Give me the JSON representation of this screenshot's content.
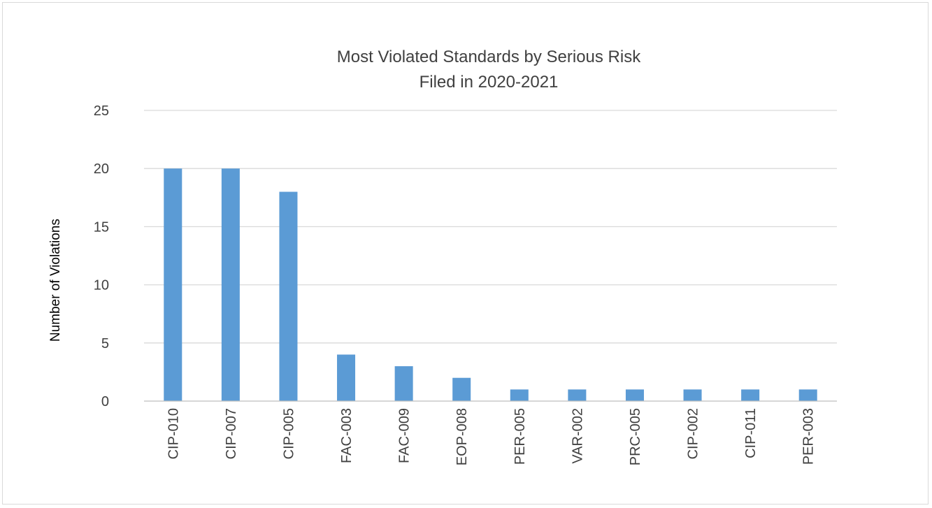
{
  "chart_data": {
    "type": "bar",
    "title": [
      "Most Violated Standards by Serious Risk",
      "Filed in 2020-2021"
    ],
    "xlabel": "",
    "ylabel": "Number of Violations",
    "categories": [
      "CIP-010",
      "CIP-007",
      "CIP-005",
      "FAC-003",
      "FAC-009",
      "EOP-008",
      "PER-005",
      "VAR-002",
      "PRC-005",
      "CIP-002",
      "CIP-011",
      "PER-003"
    ],
    "values": [
      20,
      20,
      18,
      4,
      3,
      2,
      1,
      1,
      1,
      1,
      1,
      1
    ],
    "ylim": [
      0,
      25
    ],
    "yticks": [
      0,
      5,
      10,
      15,
      20,
      25
    ],
    "grid": true,
    "legend": "none",
    "bar_color": "#5b9bd5"
  }
}
